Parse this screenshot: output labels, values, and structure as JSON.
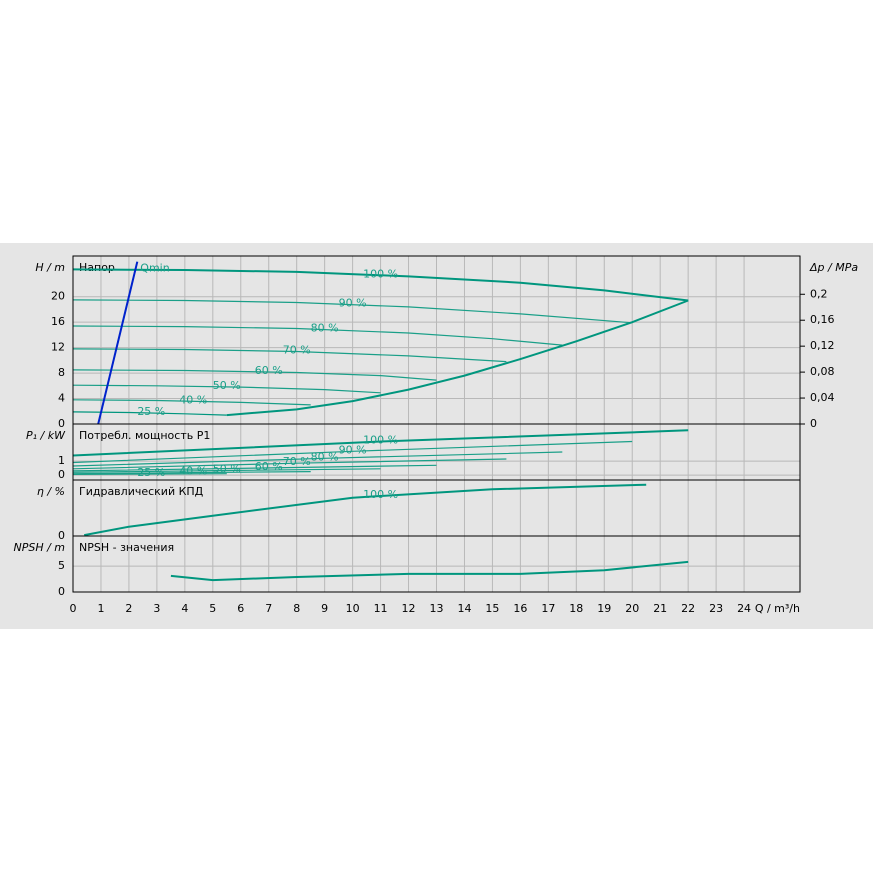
{
  "chart_data": [
    {
      "type": "line",
      "title": "Напор",
      "y_label": "H / m",
      "y2_label": "Δp / MPa",
      "xlim": [
        0,
        26
      ],
      "ylim": [
        0,
        26.4
      ],
      "yticks": [
        0,
        4,
        8,
        12,
        16,
        20
      ],
      "y2lim": [
        0,
        0.259
      ],
      "y2ticks": [
        0,
        {
          "value": 0.04,
          "label": "0,04"
        },
        {
          "value": 0.08,
          "label": "0,08"
        },
        {
          "value": 0.12,
          "label": "0,12"
        },
        {
          "value": 0.16,
          "label": "0,16"
        },
        {
          "value": 0.2,
          "label": "0,2"
        }
      ],
      "series": [
        {
          "name": "100 %",
          "color": "#00967e",
          "x": [
            0,
            4,
            8,
            12,
            16,
            19,
            22
          ],
          "values": [
            24.3,
            24.2,
            23.9,
            23.2,
            22.2,
            21,
            19.4
          ]
        },
        {
          "name": "90 %",
          "color": "#1a9f88",
          "x": [
            0,
            4,
            8,
            12,
            16,
            20
          ],
          "values": [
            19.5,
            19.4,
            19.1,
            18.4,
            17.3,
            15.9
          ]
        },
        {
          "name": "80 %",
          "color": "#1a9f88",
          "x": [
            0,
            4,
            8,
            12,
            15,
            17.5
          ],
          "values": [
            15.4,
            15.3,
            15,
            14.3,
            13.4,
            12.4
          ]
        },
        {
          "name": "70 %",
          "color": "#1a9f88",
          "x": [
            0,
            4,
            8,
            12,
            15.5
          ],
          "values": [
            11.8,
            11.7,
            11.4,
            10.7,
            9.8
          ]
        },
        {
          "name": "60 %",
          "color": "#1a9f88",
          "x": [
            0,
            4,
            8,
            11,
            13
          ],
          "values": [
            8.5,
            8.4,
            8.1,
            7.6,
            6.9
          ]
        },
        {
          "name": "50 %",
          "color": "#1a9f88",
          "x": [
            0,
            3,
            6,
            9,
            11
          ],
          "values": [
            6.1,
            6,
            5.8,
            5.4,
            4.9
          ]
        },
        {
          "name": "40 %",
          "color": "#1a9f88",
          "x": [
            0,
            3,
            6,
            8.5
          ],
          "values": [
            3.8,
            3.7,
            3.4,
            3.0
          ]
        },
        {
          "name": "25 %",
          "color": "#00967e",
          "x": [
            0,
            2,
            4,
            5.5
          ],
          "values": [
            1.9,
            1.8,
            1.6,
            1.4
          ]
        },
        {
          "color": "#00967e",
          "x": [
            5.5,
            8,
            10,
            12,
            14,
            16,
            18,
            20,
            22
          ],
          "values": [
            1.4,
            2.3,
            3.6,
            5.4,
            7.6,
            10.2,
            13,
            16,
            19.4
          ]
        },
        {
          "name": "Qmin",
          "color": "#0022cc",
          "x": [
            0.9,
            2.3
          ],
          "values": [
            0,
            25.5
          ]
        }
      ]
    },
    {
      "type": "line",
      "title": "Потребл. мощность P1",
      "y_label": "P₁ / kW",
      "xlim": [
        0,
        26
      ],
      "ylim": [
        -0.35,
        3.65
      ],
      "yticks": [
        0,
        1
      ],
      "series": [
        {
          "name": "100 %",
          "color": "#00967e",
          "x": [
            0,
            11,
            22
          ],
          "values": [
            1.4,
            2.4,
            3.2
          ]
        },
        {
          "name": "90 %",
          "color": "#1a9f88",
          "x": [
            0,
            10,
            20
          ],
          "values": [
            0.9,
            1.7,
            2.4
          ]
        },
        {
          "name": "80 %",
          "color": "#1a9f88",
          "x": [
            0,
            9,
            17.5
          ],
          "values": [
            0.65,
            1.2,
            1.65
          ]
        },
        {
          "name": "70 %",
          "color": "#1a9f88",
          "x": [
            0,
            8,
            15.5
          ],
          "values": [
            0.45,
            0.85,
            1.15
          ]
        },
        {
          "name": "60 %",
          "color": "#1a9f88",
          "x": [
            0,
            6.5,
            13
          ],
          "values": [
            0.3,
            0.5,
            0.7
          ]
        },
        {
          "name": "50 %",
          "color": "#1a9f88",
          "x": [
            0,
            5.5,
            11
          ],
          "values": [
            0.2,
            0.33,
            0.45
          ]
        },
        {
          "name": "40 %",
          "color": "#1a9f88",
          "x": [
            0,
            4.3,
            8.5
          ],
          "values": [
            0.1,
            0.18,
            0.25
          ]
        },
        {
          "name": "25 %",
          "color": "#1a9f88",
          "x": [
            0,
            2.8,
            5.5
          ],
          "values": [
            0.05,
            0.08,
            0.1
          ]
        }
      ]
    },
    {
      "type": "line",
      "title": "Гидравлический КПД",
      "y_label": "η / %",
      "xlim": [
        0,
        26
      ],
      "ylim": [
        0,
        60
      ],
      "yticks": [
        0
      ],
      "series": [
        {
          "name": "100 %",
          "color": "#00967e",
          "x": [
            0.4,
            2,
            5,
            10,
            15,
            20.5
          ],
          "values": [
            1,
            10,
            21.8,
            41,
            50,
            55
          ]
        }
      ]
    },
    {
      "type": "line",
      "title": "NPSH - значения",
      "y_label": "NPSH / m",
      "x_label": "Q / m³/h",
      "xlim": [
        0,
        26
      ],
      "ylim": [
        0,
        10.8
      ],
      "yticks": [
        0,
        5
      ],
      "xticks": [
        0,
        1,
        2,
        3,
        4,
        5,
        6,
        7,
        8,
        9,
        10,
        11,
        12,
        13,
        14,
        15,
        16,
        17,
        18,
        19,
        20,
        21,
        22,
        23,
        24
      ],
      "series": [
        {
          "color": "#00967e",
          "x": [
            3.5,
            5,
            8,
            12,
            16,
            19,
            22
          ],
          "values": [
            3.1,
            2.3,
            2.9,
            3.5,
            3.5,
            4.2,
            5.8
          ]
        }
      ]
    }
  ]
}
